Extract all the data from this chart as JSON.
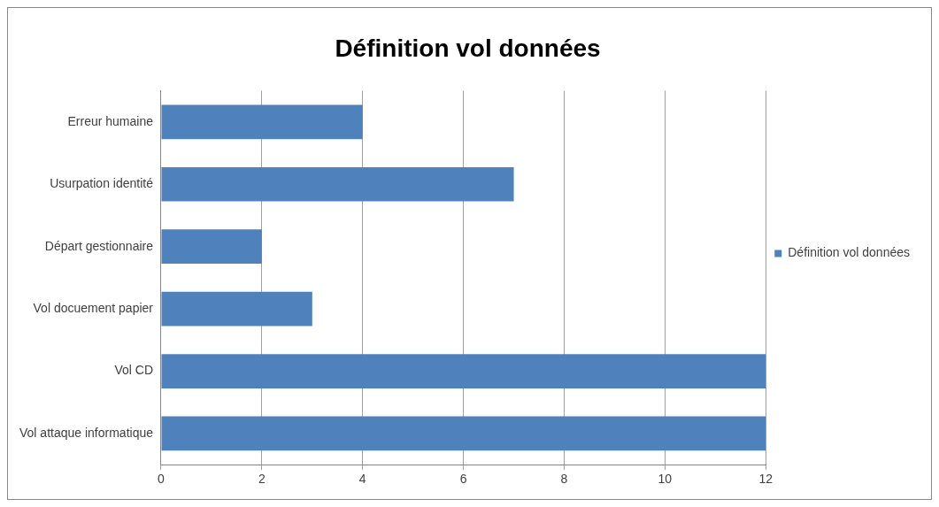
{
  "chart_data": {
    "type": "bar",
    "orientation": "horizontal",
    "title": "Définition vol données",
    "categories": [
      "Erreur humaine",
      "Usurpation identité",
      "Départ gestionnaire",
      "Vol docuement papier",
      "Vol CD",
      "Vol attaque informatique"
    ],
    "series": [
      {
        "name": "Définition vol données",
        "color": "#4f81bd",
        "values": [
          4,
          7,
          2,
          3,
          12,
          12
        ]
      }
    ],
    "xlim": [
      0,
      12
    ],
    "xticks": [
      0,
      2,
      4,
      6,
      8,
      10,
      12
    ],
    "grid": "x",
    "legend": "right"
  }
}
